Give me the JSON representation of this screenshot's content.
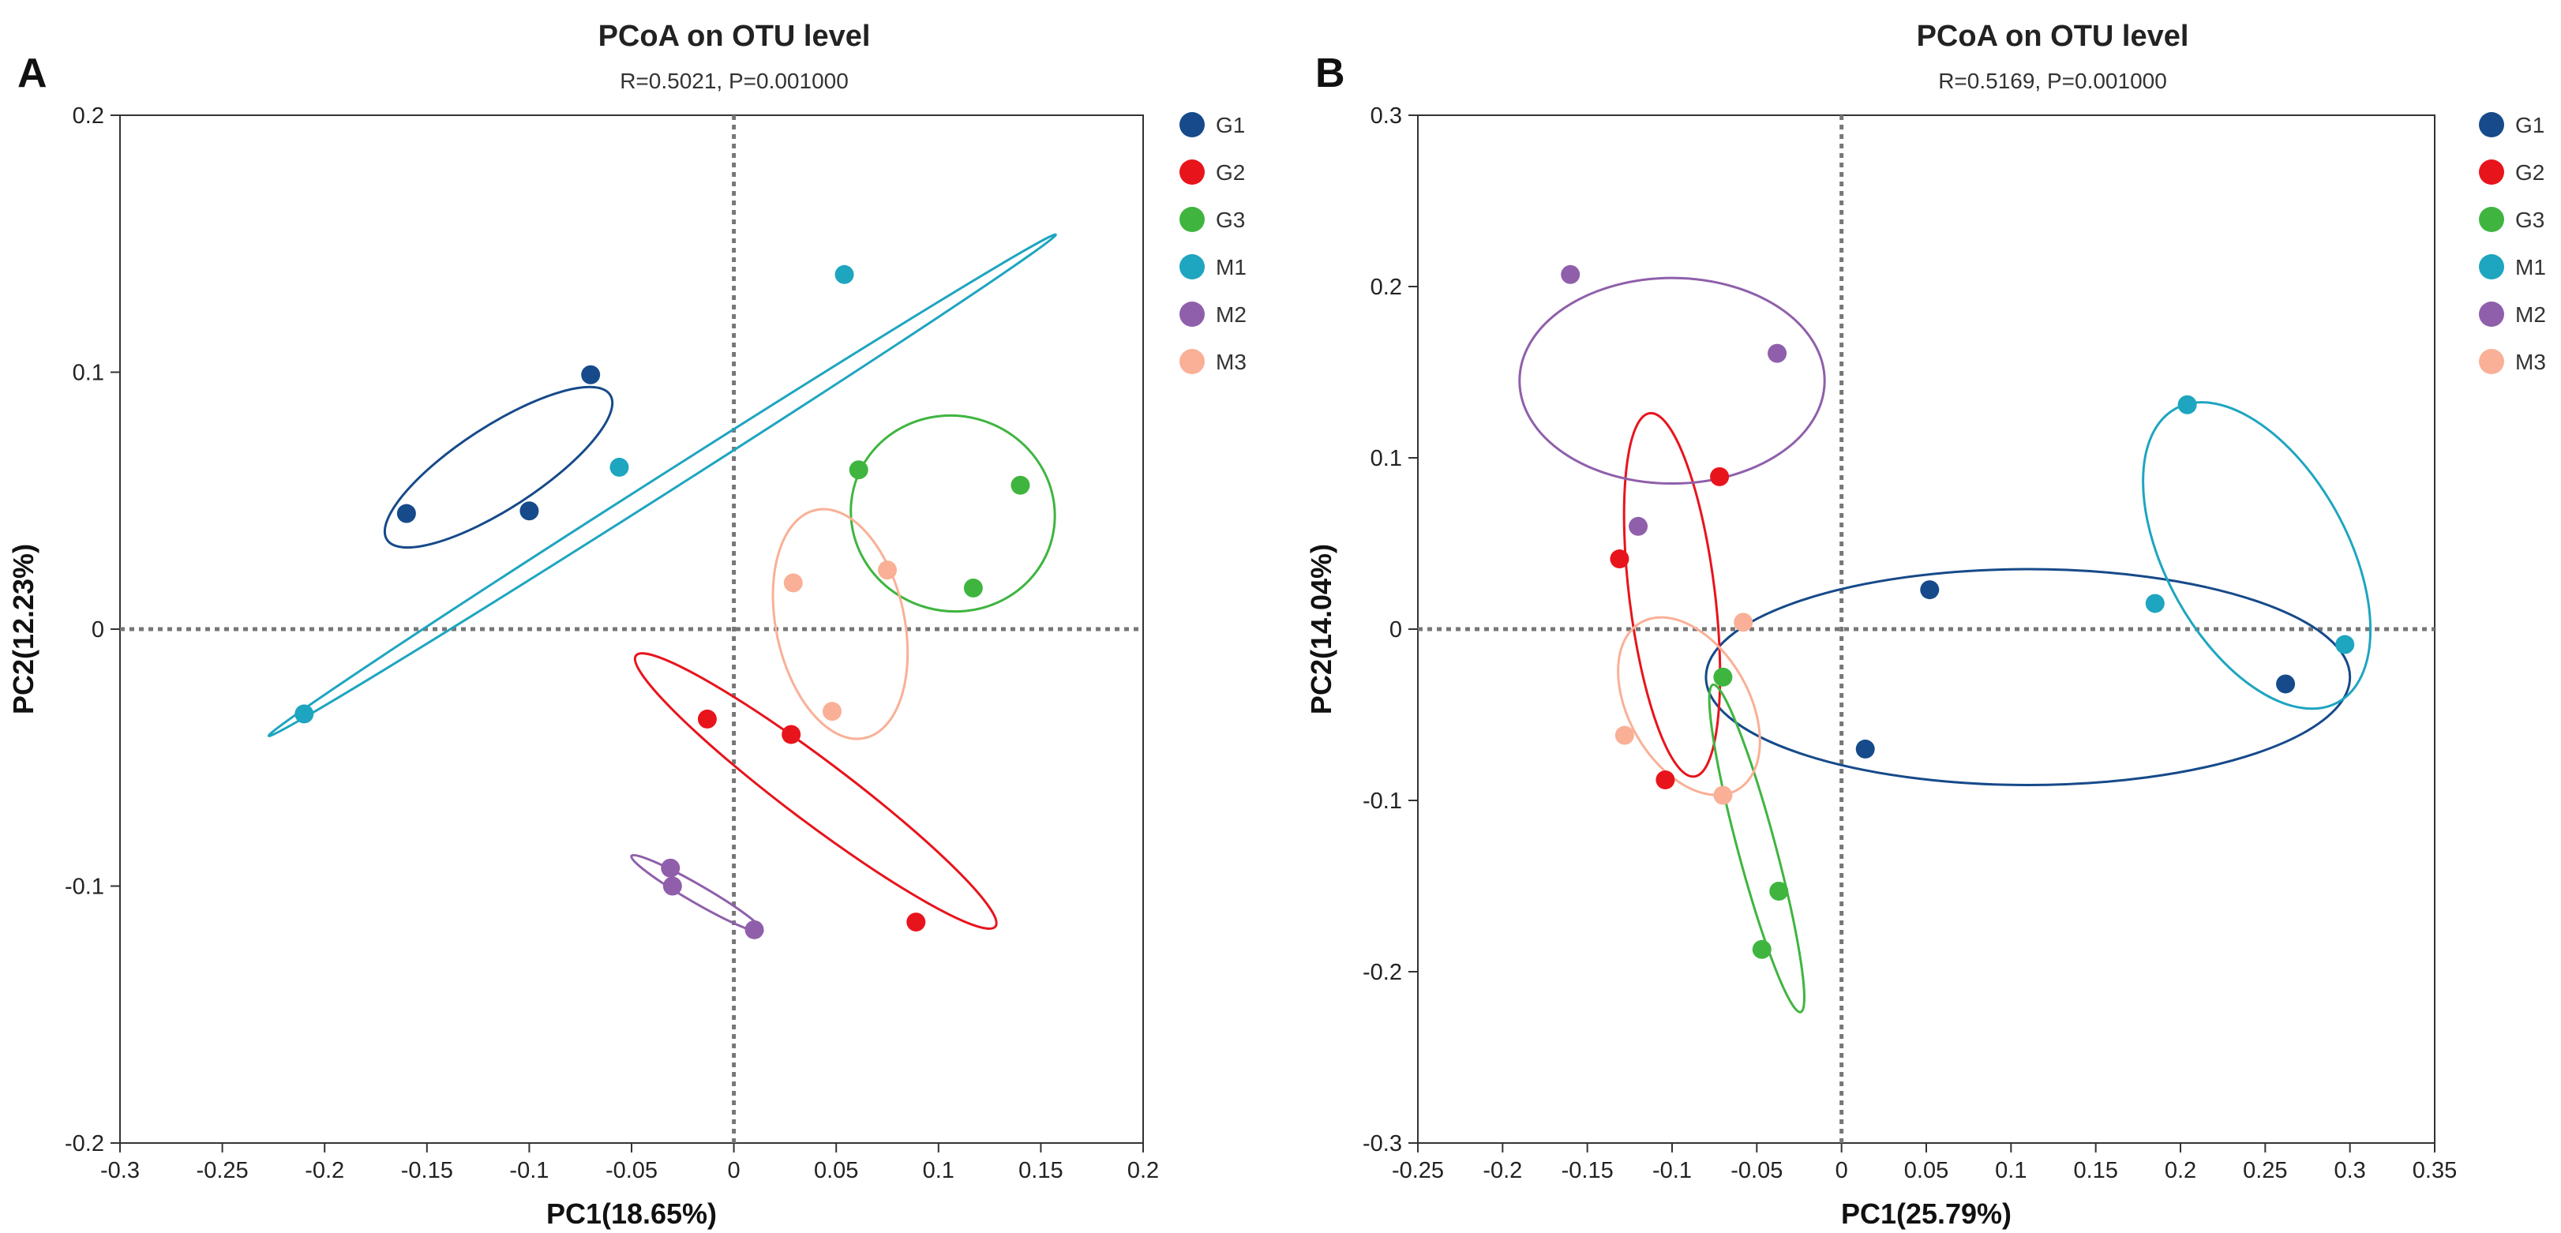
{
  "chart_data": [
    {
      "type": "scatter",
      "panel_label": "A",
      "title": "PCoA on OTU level",
      "subtitle": "R=0.5021, P=0.001000",
      "xlabel": "PC1(18.65%)",
      "ylabel": "PC2(12.23%)",
      "xlim": [
        -0.3,
        0.2
      ],
      "ylim": [
        -0.2,
        0.2
      ],
      "xticks": [
        -0.3,
        -0.25,
        -0.2,
        -0.15,
        -0.1,
        -0.05,
        0,
        0.05,
        0.1,
        0.15,
        0.2
      ],
      "xtick_labels": [
        "-0.3",
        "-0.25",
        "-0.2",
        "-0.15",
        "-0.1",
        "-0.05",
        "0",
        "0.05",
        "0.1",
        "0.15",
        "0.2"
      ],
      "yticks": [
        -0.2,
        -0.1,
        0,
        0.1,
        0.2
      ],
      "ytick_labels": [
        "-0.2",
        "-0.1",
        "0",
        "0.1",
        "0.2"
      ],
      "grid": false,
      "zero_lines": true,
      "legend_position": "right",
      "series": [
        {
          "name": "G1",
          "color": "#164a8a",
          "points": [
            [
              -0.16,
              0.045
            ],
            [
              -0.1,
              0.046
            ],
            [
              -0.07,
              0.099
            ]
          ],
          "ellipse": {
            "cx": -0.115,
            "cy": 0.063,
            "rx": 0.065,
            "ry": 0.016,
            "angle_deg": 33
          }
        },
        {
          "name": "G2",
          "color": "#e8141c",
          "points": [
            [
              -0.013,
              -0.035
            ],
            [
              0.028,
              -0.041
            ],
            [
              0.089,
              -0.114
            ]
          ],
          "ellipse": {
            "cx": 0.04,
            "cy": -0.063,
            "rx": 0.11,
            "ry": 0.012,
            "angle_deg": -37
          }
        },
        {
          "name": "G3",
          "color": "#3fb540",
          "points": [
            [
              0.061,
              0.062
            ],
            [
              0.14,
              0.056
            ],
            [
              0.117,
              0.016
            ]
          ],
          "ellipse": {
            "cx": 0.107,
            "cy": 0.045,
            "rx": 0.05,
            "ry": 0.038,
            "angle_deg": -15
          }
        },
        {
          "name": "M1",
          "color": "#1ea5c0",
          "points": [
            [
              -0.21,
              -0.033
            ],
            [
              -0.056,
              0.063
            ],
            [
              0.054,
              0.138
            ]
          ],
          "ellipse": {
            "cx": -0.035,
            "cy": 0.056,
            "rx": 0.228,
            "ry": 0.0035,
            "angle_deg": 32.5
          }
        },
        {
          "name": "M2",
          "color": "#8f5fab",
          "points": [
            [
              -0.031,
              -0.093
            ],
            [
              -0.03,
              -0.1
            ],
            [
              0.01,
              -0.117
            ]
          ],
          "ellipse": {
            "cx": -0.018,
            "cy": -0.103,
            "rx": 0.037,
            "ry": 0.0035,
            "angle_deg": -30
          }
        },
        {
          "name": "M3",
          "color": "#f9b096",
          "points": [
            [
              0.029,
              0.018
            ],
            [
              0.075,
              0.023
            ],
            [
              0.048,
              -0.032
            ]
          ],
          "ellipse": {
            "cx": 0.052,
            "cy": 0.002,
            "rx": 0.057,
            "ry": 0.025,
            "angle_deg": -78
          }
        }
      ]
    },
    {
      "type": "scatter",
      "panel_label": "B",
      "title": "PCoA on OTU level",
      "subtitle": "R=0.5169, P=0.001000",
      "xlabel": "PC1(25.79%)",
      "ylabel": "PC2(14.04%)",
      "xlim": [
        -0.25,
        0.35
      ],
      "ylim": [
        -0.3,
        0.3
      ],
      "xticks": [
        -0.25,
        -0.2,
        -0.15,
        -0.1,
        -0.05,
        0,
        0.05,
        0.1,
        0.15,
        0.2,
        0.25,
        0.3,
        0.35
      ],
      "xtick_labels": [
        "-0.25",
        "-0.2",
        "-0.15",
        "-0.1",
        "-0.05",
        "0",
        "0.05",
        "0.1",
        "0.15",
        "0.2",
        "0.25",
        "0.3",
        "0.35"
      ],
      "yticks": [
        -0.3,
        -0.2,
        -0.1,
        0,
        0.1,
        0.2,
        0.3
      ],
      "ytick_labels": [
        "-0.3",
        "-0.2",
        "-0.1",
        "0",
        "0.1",
        "0.2",
        "0.3"
      ],
      "grid": false,
      "zero_lines": true,
      "legend_position": "right",
      "series": [
        {
          "name": "G1",
          "color": "#164a8a",
          "points": [
            [
              0.052,
              0.023
            ],
            [
              0.014,
              -0.07
            ],
            [
              0.262,
              -0.032
            ]
          ],
          "ellipse": {
            "cx": 0.11,
            "cy": -0.028,
            "rx": 0.19,
            "ry": 0.063,
            "angle_deg": 0
          }
        },
        {
          "name": "G2",
          "color": "#e8141c",
          "points": [
            [
              -0.072,
              0.089
            ],
            [
              -0.131,
              0.041
            ],
            [
              -0.104,
              -0.088
            ]
          ],
          "ellipse": {
            "cx": -0.1,
            "cy": 0.02,
            "rx": 0.108,
            "ry": 0.025,
            "angle_deg": -83
          }
        },
        {
          "name": "G3",
          "color": "#3fb540",
          "points": [
            [
              -0.07,
              -0.028
            ],
            [
              -0.037,
              -0.153
            ],
            [
              -0.047,
              -0.187
            ]
          ],
          "ellipse": {
            "cx": -0.05,
            "cy": -0.128,
            "rx": 0.1,
            "ry": 0.011,
            "angle_deg": -75
          }
        },
        {
          "name": "M1",
          "color": "#1ea5c0",
          "points": [
            [
              0.204,
              0.131
            ],
            [
              0.185,
              0.015
            ],
            [
              0.297,
              -0.009
            ]
          ],
          "ellipse": {
            "cx": 0.245,
            "cy": 0.043,
            "rx": 0.099,
            "ry": 0.053,
            "angle_deg": -61
          }
        },
        {
          "name": "M2",
          "color": "#8f5fab",
          "points": [
            [
              -0.16,
              0.207
            ],
            [
              -0.038,
              0.161
            ],
            [
              -0.12,
              0.06
            ]
          ],
          "ellipse": {
            "cx": -0.1,
            "cy": 0.145,
            "rx": 0.09,
            "ry": 0.06,
            "angle_deg": 0
          }
        },
        {
          "name": "M3",
          "color": "#f9b096",
          "points": [
            [
              -0.058,
              0.004
            ],
            [
              -0.128,
              -0.062
            ],
            [
              -0.07,
              -0.097
            ]
          ],
          "ellipse": {
            "cx": -0.09,
            "cy": -0.045,
            "rx": 0.057,
            "ry": 0.035,
            "angle_deg": -60
          }
        }
      ]
    }
  ]
}
